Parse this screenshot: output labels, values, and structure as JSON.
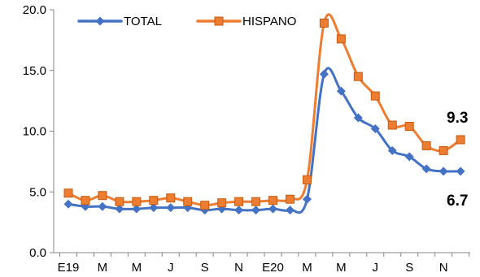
{
  "chart_data": {
    "type": "line",
    "title": "",
    "xlabel": "",
    "ylabel": "",
    "ylim": [
      0,
      20
    ],
    "yticks": [
      "0.0",
      "5.0",
      "10.0",
      "15.0",
      "20.0"
    ],
    "x_tick_labels": [
      "E19",
      "M",
      "M",
      "J",
      "S",
      "N",
      "E20",
      "M",
      "M",
      "J",
      "S",
      "N"
    ],
    "grid": false,
    "legend_position": "top-left",
    "series": [
      {
        "name": "TOTAL",
        "color": "#4472C4",
        "marker": "diamond",
        "values": [
          4.0,
          3.8,
          3.8,
          3.6,
          3.6,
          3.7,
          3.7,
          3.7,
          3.5,
          3.6,
          3.5,
          3.5,
          3.6,
          3.5,
          4.4,
          14.7,
          13.3,
          11.1,
          10.2,
          8.4,
          7.9,
          6.9,
          6.7,
          6.7
        ]
      },
      {
        "name": "HISPANO",
        "color": "#ED7D31",
        "marker": "square",
        "values": [
          4.9,
          4.3,
          4.7,
          4.2,
          4.2,
          4.3,
          4.5,
          4.2,
          3.9,
          4.1,
          4.2,
          4.2,
          4.3,
          4.4,
          6.0,
          18.9,
          17.6,
          14.5,
          12.9,
          10.5,
          10.4,
          8.8,
          8.4,
          9.3
        ]
      }
    ],
    "annotations": [
      {
        "text": "9.3",
        "series": "HISPANO"
      },
      {
        "text": "6.7",
        "series": "TOTAL"
      }
    ]
  }
}
